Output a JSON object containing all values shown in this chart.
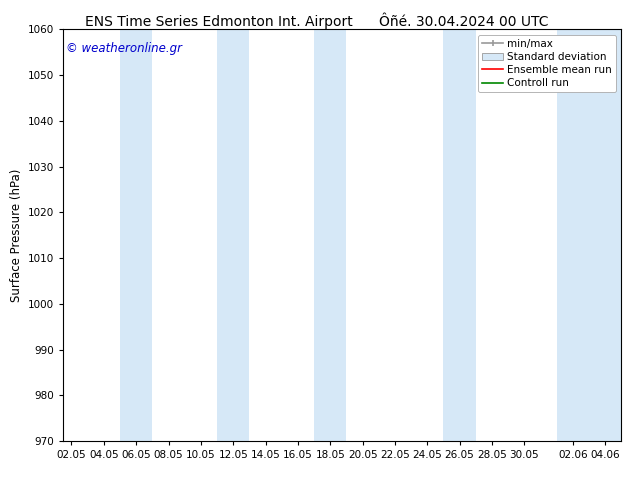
{
  "title_left": "ENS Time Series Edmonton Int. Airport",
  "title_right": "Ôñé. 30.04.2024 00 UTC",
  "ylabel": "Surface Pressure (hPa)",
  "ylim": [
    970,
    1060
  ],
  "yticks": [
    970,
    980,
    990,
    1000,
    1010,
    1020,
    1030,
    1040,
    1050,
    1060
  ],
  "xlabel_ticks": [
    "02.05",
    "04.05",
    "06.05",
    "08.05",
    "10.05",
    "12.05",
    "14.05",
    "16.05",
    "18.05",
    "20.05",
    "22.05",
    "24.05",
    "26.05",
    "28.05",
    "30.05",
    "02.06",
    "04.06"
  ],
  "x_positions": [
    0,
    2,
    4,
    6,
    8,
    10,
    12,
    14,
    16,
    18,
    20,
    22,
    24,
    26,
    28,
    31,
    33
  ],
  "xlim": [
    -0.5,
    34.0
  ],
  "watermark": "© weatheronline.gr",
  "watermark_color": "#0000cc",
  "bg_color": "#ffffff",
  "plot_bg_color": "#ffffff",
  "shaded_band_color": "#d6e8f7",
  "shaded_band_alpha": 1.0,
  "band_starts": [
    3,
    9,
    15,
    23,
    30
  ],
  "band_ends": [
    5,
    11,
    17,
    25,
    34
  ],
  "legend_minmax_color": "#999999",
  "legend_stddev_color": "#d6e8f7",
  "legend_ensemble_color": "#ff0000",
  "legend_control_color": "#008800",
  "title_fontsize": 10,
  "tick_fontsize": 7.5,
  "legend_fontsize": 7.5,
  "ylabel_fontsize": 8.5,
  "watermark_fontsize": 8.5
}
